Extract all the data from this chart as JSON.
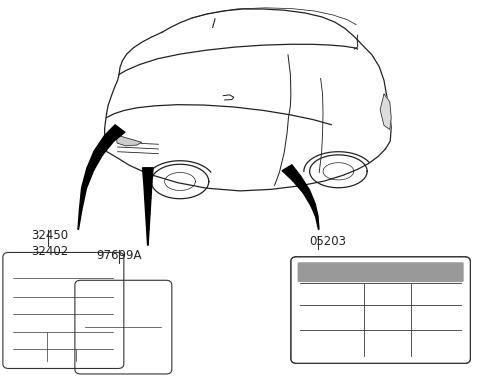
{
  "bg_color": "#ffffff",
  "label_32450_32402": "32450\n32402",
  "label_97699A": "97699A",
  "label_05203": "05203",
  "part_label_color": "#222222",
  "line_color": "#222222",
  "box_line_color": "#333333",
  "car_color": "#222222",
  "car_lw": 0.9
}
